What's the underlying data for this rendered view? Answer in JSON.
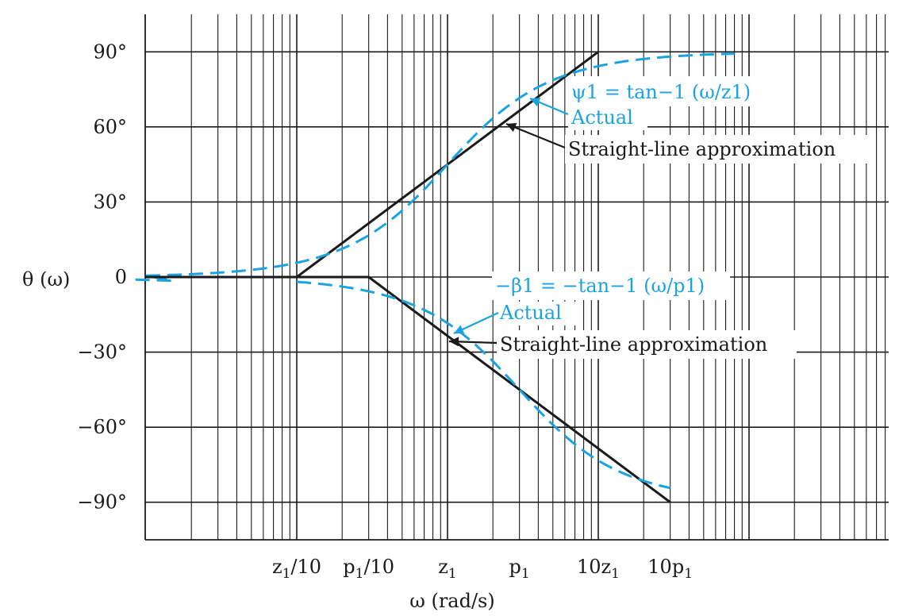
{
  "chart_data": {
    "type": "line",
    "x_scale": "log",
    "grid": true,
    "xlabel": "ω (rad/s)",
    "ylabel": "θ (ω)",
    "ylim": [
      -105,
      105
    ],
    "x_ticks": [
      {
        "label": "z1/10",
        "value": 0.1
      },
      {
        "label": "p1/10",
        "value": 0.3
      },
      {
        "label": "z1",
        "value": 1
      },
      {
        "label": "p1",
        "value": 3
      },
      {
        "label": "10z1",
        "value": 10
      },
      {
        "label": "10p1",
        "value": 30
      }
    ],
    "y_ticks": [
      {
        "label": "90°",
        "value": 90
      },
      {
        "label": "60°",
        "value": 60
      },
      {
        "label": "30°",
        "value": 30
      },
      {
        "label": "0",
        "value": 0
      },
      {
        "label": "−30°",
        "value": -30
      },
      {
        "label": "−60°",
        "value": -60
      },
      {
        "label": "−90°",
        "value": -90
      }
    ],
    "series": [
      {
        "kind": "straight-line-zero",
        "color": "#1a1a1a",
        "x": [
          0.0,
          0.1,
          10
        ],
        "y": [
          0,
          0,
          90
        ]
      },
      {
        "kind": "actual-zero",
        "color": "#1aa3e0",
        "x": [
          0.01,
          0.1,
          1,
          10,
          80
        ],
        "y": [
          0.6,
          5.7,
          45,
          84.3,
          89.3
        ]
      },
      {
        "kind": "straight-line-pole",
        "color": "#1a1a1a",
        "x": [
          0.0,
          0.3,
          30
        ],
        "y": [
          0,
          0,
          -90
        ]
      },
      {
        "kind": "actual-pole",
        "color": "#1aa3e0",
        "x": [
          0.1,
          0.3,
          1,
          3,
          10,
          30
        ],
        "y": [
          -1.9,
          -5.7,
          -18.4,
          -45,
          -73.3,
          -84.3
        ]
      }
    ],
    "annotations": [
      {
        "id": "zero-formula",
        "text": "ψ1 = tan−1 (ω/z1)",
        "color": "#1aa3e0"
      },
      {
        "id": "zero-actual",
        "text": "Actual",
        "color": "#1aa3e0"
      },
      {
        "id": "zero-straight",
        "text": "Straight-line approximation",
        "color": "#1a1a1a"
      },
      {
        "id": "pole-formula",
        "text": "−β1 = −tan−1 (ω/p1)",
        "color": "#1aa3e0"
      },
      {
        "id": "pole-actual",
        "text": "Actual",
        "color": "#1aa3e0"
      },
      {
        "id": "pole-straight",
        "text": "Straight-line approximation",
        "color": "#1a1a1a"
      }
    ]
  }
}
